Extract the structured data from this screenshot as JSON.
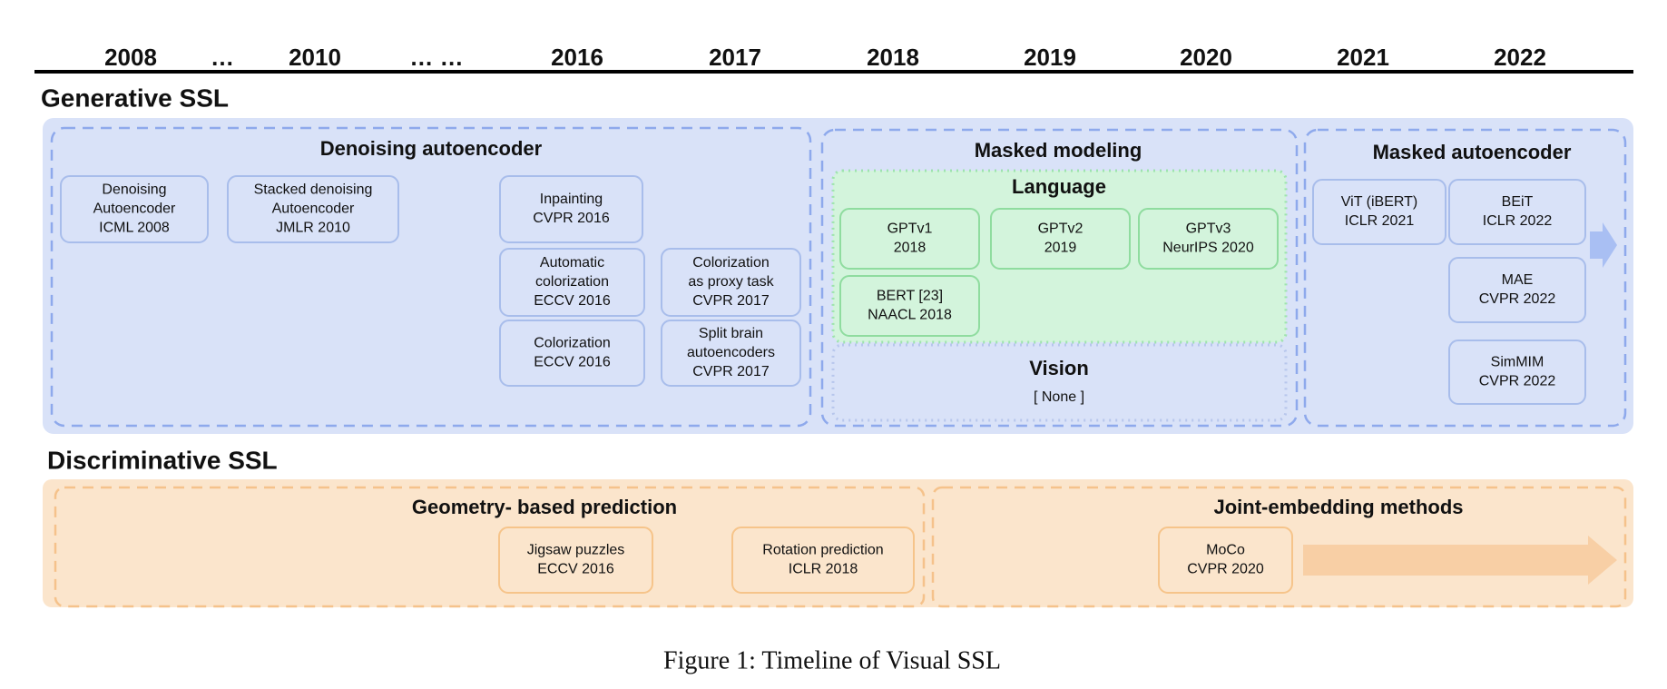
{
  "timeline": [
    "2008",
    "…",
    "2010",
    "… …",
    "2016",
    "2017",
    "2018",
    "2019",
    "2020",
    "2021",
    "2022"
  ],
  "generative": {
    "title": "Generative SSL",
    "groups": [
      {
        "title": "Denoising autoencoder",
        "boxes": [
          {
            "lines": [
              "Denoising",
              "Autoencoder",
              "ICML 2008"
            ]
          },
          {
            "lines": [
              "Stacked denoising",
              "Autoencoder",
              "JMLR 2010"
            ]
          },
          {
            "lines": [
              "Inpainting",
              "CVPR 2016"
            ]
          },
          {
            "lines": [
              "Automatic",
              "colorization",
              "ECCV 2016"
            ]
          },
          {
            "lines": [
              "Colorization",
              "ECCV 2016"
            ]
          },
          {
            "lines": [
              "Colorization",
              "as proxy task",
              "CVPR 2017"
            ]
          },
          {
            "lines": [
              "Split brain",
              "autoencoders",
              "CVPR 2017"
            ]
          }
        ]
      },
      {
        "title": "Masked modeling",
        "subgroups": [
          {
            "title": "Language",
            "boxes": [
              {
                "lines": [
                  "GPTv1",
                  "2018"
                ]
              },
              {
                "lines": [
                  "GPTv2",
                  "2019"
                ]
              },
              {
                "lines": [
                  "GPTv3",
                  "NeurIPS 2020"
                ]
              },
              {
                "lines": [
                  "BERT [23]",
                  "NAACL 2018"
                ]
              }
            ]
          },
          {
            "title": "Vision",
            "text": "[ None ]"
          }
        ]
      },
      {
        "title": "Masked autoencoder",
        "boxes": [
          {
            "lines": [
              "ViT (iBERT)",
              "ICLR 2021"
            ]
          },
          {
            "lines": [
              "BEiT",
              "ICLR 2022"
            ]
          },
          {
            "lines": [
              "MAE",
              "CVPR 2022"
            ]
          },
          {
            "lines": [
              "SimMIM",
              "CVPR 2022"
            ]
          }
        ]
      }
    ]
  },
  "discriminative": {
    "title": "Discriminative SSL",
    "groups": [
      {
        "title": "Geometry- based prediction",
        "boxes": [
          {
            "lines": [
              "Jigsaw puzzles",
              "ECCV 2016"
            ]
          },
          {
            "lines": [
              "Rotation prediction",
              "ICLR 2018"
            ]
          }
        ]
      },
      {
        "title": "Joint-embedding methods",
        "boxes": [
          {
            "lines": [
              "MoCo",
              "CVPR 2020"
            ]
          }
        ]
      }
    ]
  },
  "caption": "Figure 1: Timeline of Visual SSL"
}
